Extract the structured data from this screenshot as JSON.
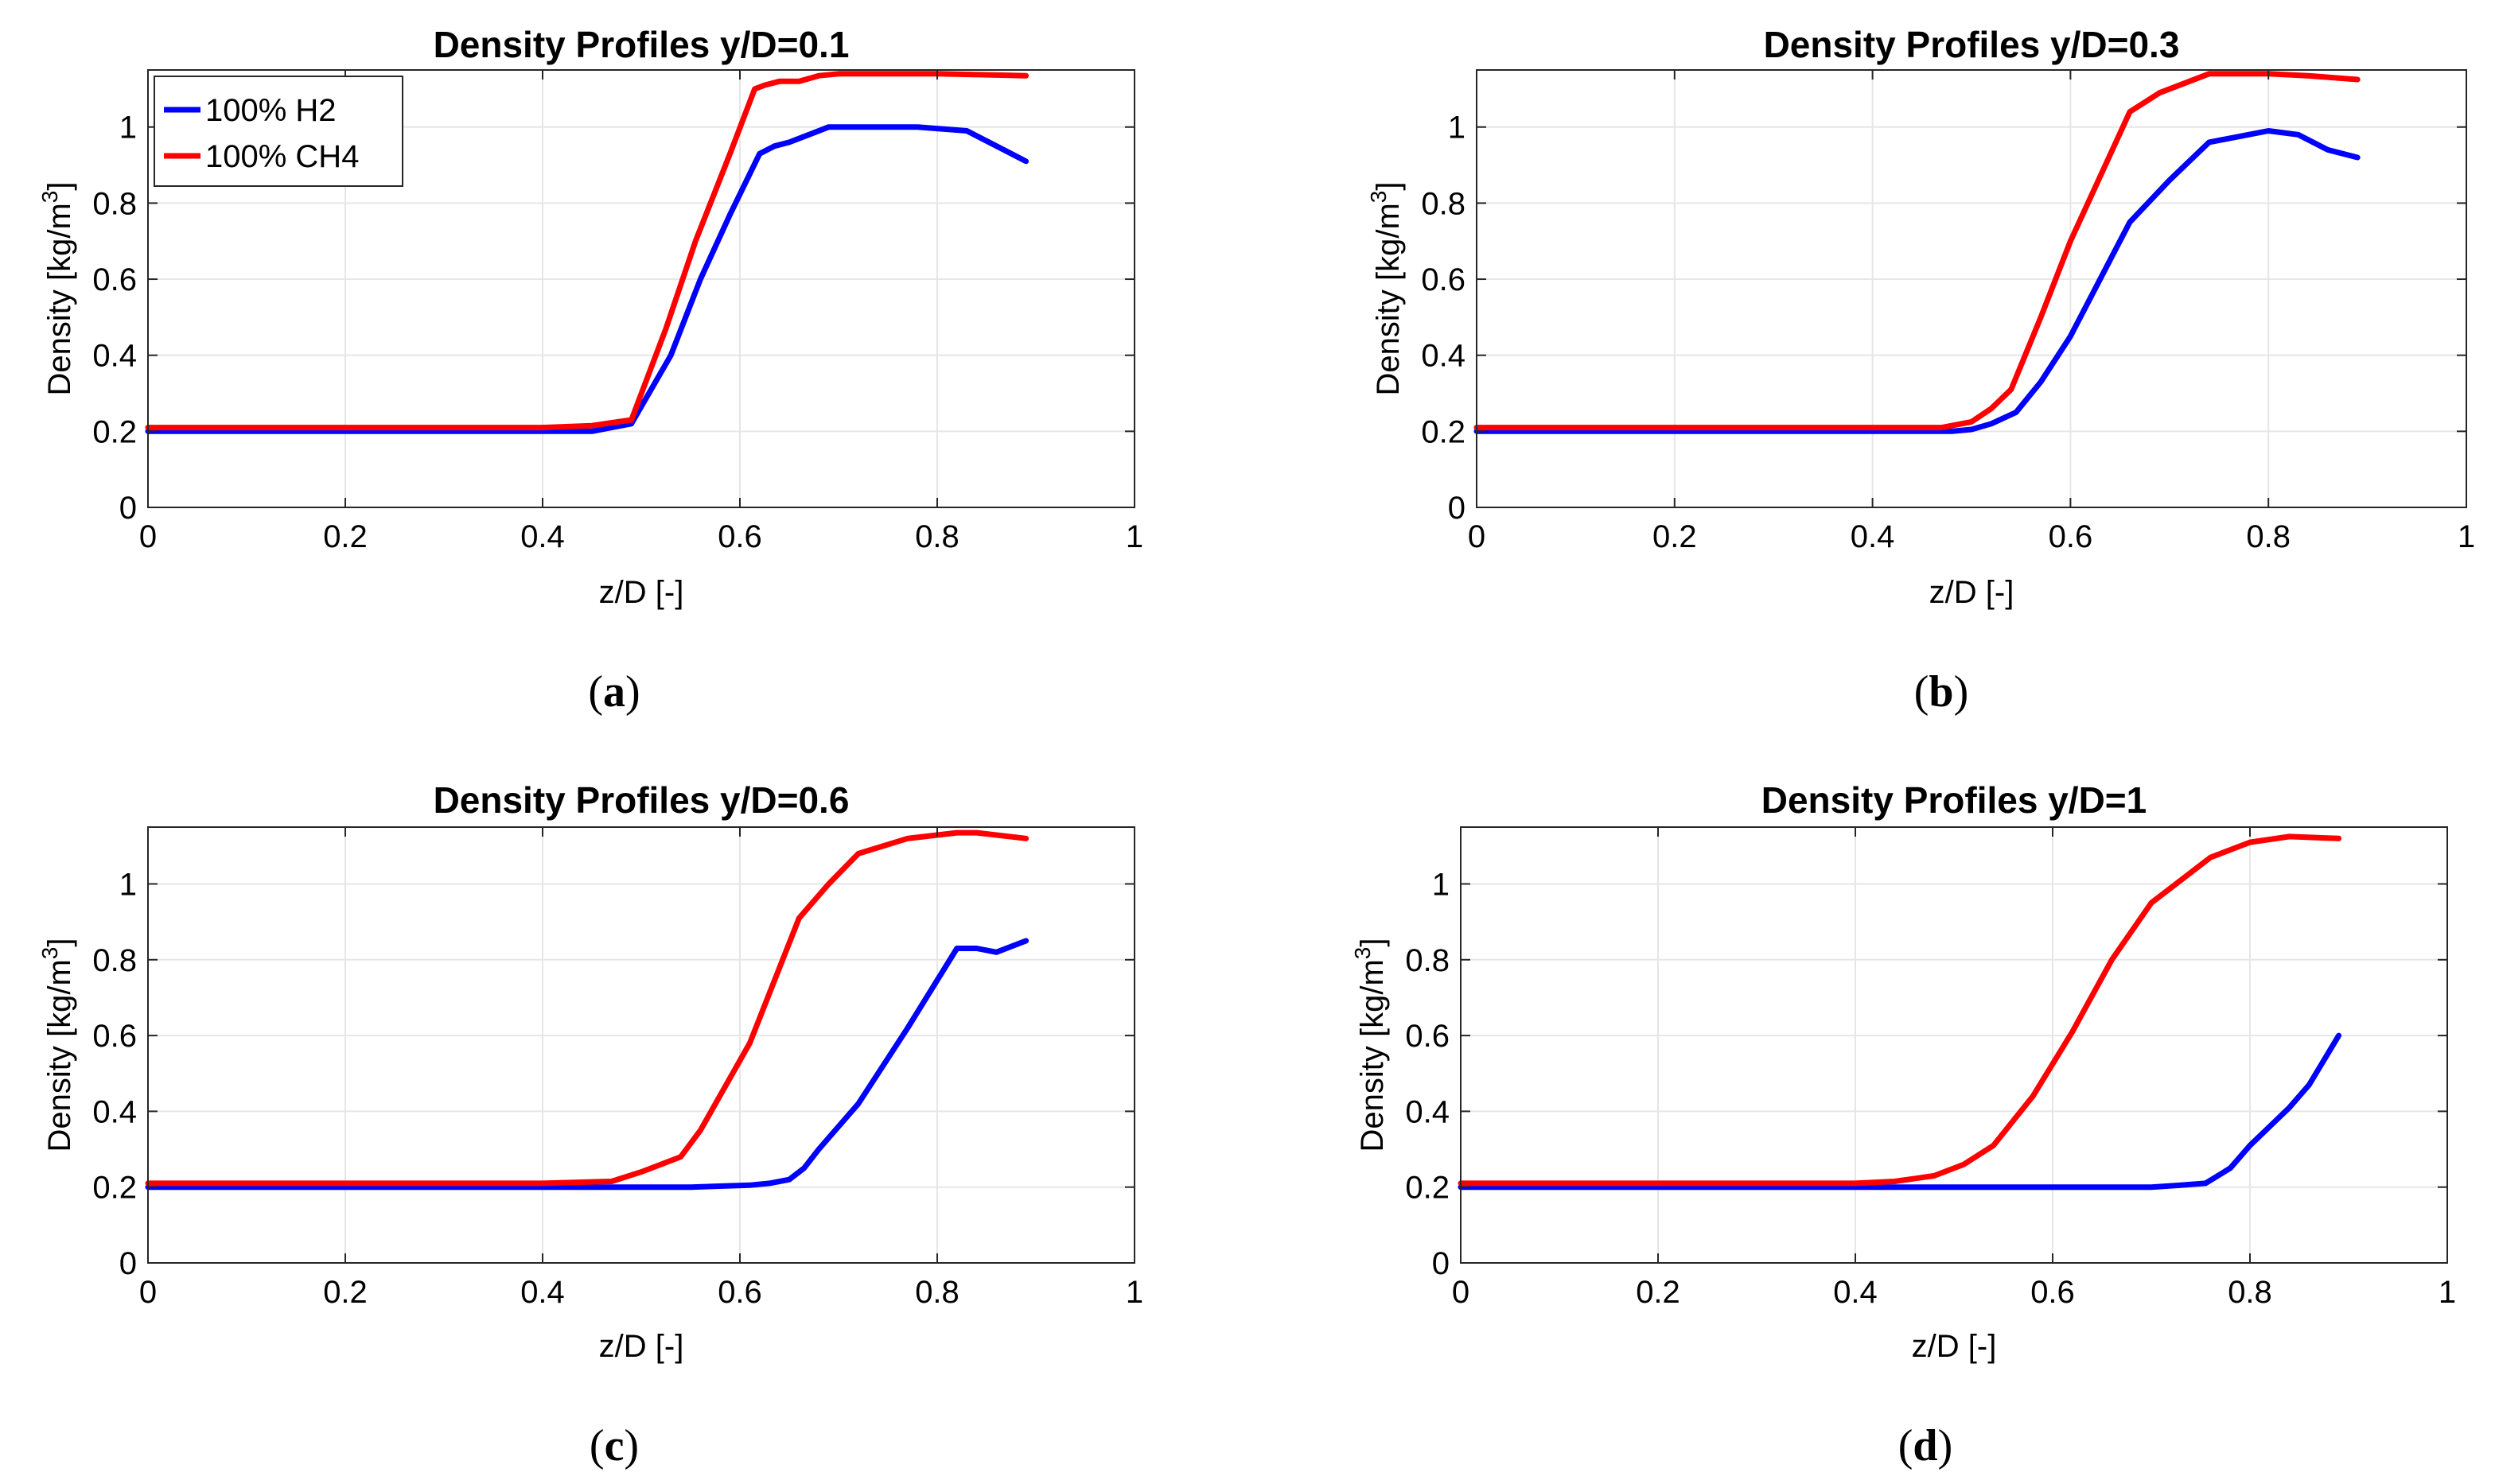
{
  "figure": {
    "legend": [
      {
        "name": "100% H2",
        "color": "#0000ff"
      },
      {
        "name": "100% CH4",
        "color": "#ff0000"
      }
    ],
    "colors": {
      "h2": "#0000ff",
      "ch4": "#ff0000",
      "grid": "#e6e6e6",
      "axis": "#262626"
    }
  },
  "chart_data": [
    {
      "type": "line",
      "caption": "a",
      "title": "Density Profiles y/D=0.1",
      "xlabel": "z/D [-]",
      "ylabel_main": "Density [kg/m",
      "ylabel_sup": "3",
      "ylabel_close": "]",
      "xlim": [
        0,
        1
      ],
      "ylim": [
        0,
        1.15
      ],
      "xticks": [
        "0",
        "0.2",
        "0.4",
        "0.6",
        "0.8",
        "1"
      ],
      "yticks": [
        "0",
        "0.2",
        "0.4",
        "0.6",
        "0.8",
        "1"
      ],
      "grid": true,
      "legend_position": "top-left",
      "series": [
        {
          "name": "100% H2",
          "x": [
            0,
            0.2,
            0.4,
            0.45,
            0.49,
            0.53,
            0.56,
            0.59,
            0.62,
            0.635,
            0.65,
            0.67,
            0.69,
            0.72,
            0.78,
            0.83,
            0.89
          ],
          "y": [
            0.2,
            0.2,
            0.2,
            0.2,
            0.22,
            0.4,
            0.6,
            0.77,
            0.93,
            0.95,
            0.96,
            0.98,
            1.0,
            1.0,
            1.0,
            0.99,
            0.91
          ]
        },
        {
          "name": "100% CH4",
          "x": [
            0,
            0.2,
            0.4,
            0.45,
            0.49,
            0.525,
            0.555,
            0.59,
            0.615,
            0.625,
            0.64,
            0.66,
            0.68,
            0.7,
            0.8,
            0.89
          ],
          "y": [
            0.21,
            0.21,
            0.21,
            0.215,
            0.23,
            0.47,
            0.7,
            0.93,
            1.1,
            1.11,
            1.12,
            1.12,
            1.135,
            1.14,
            1.14,
            1.135
          ]
        }
      ]
    },
    {
      "type": "line",
      "caption": "b",
      "title": "Density Profiles y/D=0.3",
      "xlabel": "z/D [-]",
      "ylabel_main": "Density [kg/m",
      "ylabel_sup": "3",
      "ylabel_close": "]",
      "xlim": [
        0,
        1
      ],
      "ylim": [
        0,
        1.15
      ],
      "xticks": [
        "0",
        "0.2",
        "0.4",
        "0.6",
        "0.8",
        "1"
      ],
      "yticks": [
        "0",
        "0.2",
        "0.4",
        "0.6",
        "0.8",
        "1"
      ],
      "grid": true,
      "legend_position": "none",
      "series": [
        {
          "name": "100% H2",
          "x": [
            0,
            0.2,
            0.4,
            0.48,
            0.5,
            0.52,
            0.545,
            0.57,
            0.6,
            0.63,
            0.66,
            0.7,
            0.74,
            0.78,
            0.8,
            0.83,
            0.86,
            0.89
          ],
          "y": [
            0.2,
            0.2,
            0.2,
            0.2,
            0.205,
            0.22,
            0.25,
            0.33,
            0.45,
            0.6,
            0.75,
            0.86,
            0.96,
            0.98,
            0.99,
            0.98,
            0.94,
            0.92
          ]
        },
        {
          "name": "100% CH4",
          "x": [
            0,
            0.2,
            0.4,
            0.47,
            0.5,
            0.52,
            0.54,
            0.57,
            0.6,
            0.63,
            0.66,
            0.69,
            0.74,
            0.8,
            0.84,
            0.89
          ],
          "y": [
            0.21,
            0.21,
            0.21,
            0.21,
            0.225,
            0.26,
            0.31,
            0.5,
            0.7,
            0.87,
            1.04,
            1.09,
            1.14,
            1.14,
            1.135,
            1.125
          ]
        }
      ]
    },
    {
      "type": "line",
      "caption": "c",
      "title": "Density Profiles y/D=0.6",
      "xlabel": "z/D [-]",
      "ylabel_main": "Density [kg/m",
      "ylabel_sup": "3",
      "ylabel_close": "]",
      "xlim": [
        0,
        1
      ],
      "ylim": [
        0,
        1.15
      ],
      "xticks": [
        "0",
        "0.2",
        "0.4",
        "0.6",
        "0.8",
        "1"
      ],
      "yticks": [
        "0",
        "0.2",
        "0.4",
        "0.6",
        "0.8",
        "1"
      ],
      "grid": true,
      "legend_position": "none",
      "series": [
        {
          "name": "100% H2",
          "x": [
            0,
            0.2,
            0.4,
            0.55,
            0.61,
            0.63,
            0.65,
            0.665,
            0.68,
            0.72,
            0.77,
            0.82,
            0.84,
            0.86,
            0.89
          ],
          "y": [
            0.2,
            0.2,
            0.2,
            0.2,
            0.205,
            0.21,
            0.22,
            0.25,
            0.3,
            0.42,
            0.62,
            0.83,
            0.83,
            0.82,
            0.85
          ]
        },
        {
          "name": "100% CH4",
          "x": [
            0,
            0.2,
            0.4,
            0.47,
            0.5,
            0.54,
            0.56,
            0.61,
            0.66,
            0.69,
            0.72,
            0.77,
            0.82,
            0.84,
            0.89
          ],
          "y": [
            0.21,
            0.21,
            0.21,
            0.215,
            0.24,
            0.28,
            0.35,
            0.58,
            0.91,
            1.0,
            1.08,
            1.12,
            1.135,
            1.135,
            1.12
          ]
        }
      ]
    },
    {
      "type": "line",
      "caption": "d",
      "title": "Density Profiles y/D=1",
      "xlabel": "z/D [-]",
      "ylabel_main": "Density [kg/m",
      "ylabel_sup": "3",
      "ylabel_close": "]",
      "xlim": [
        0,
        1
      ],
      "ylim": [
        0,
        1.15
      ],
      "xticks": [
        "0",
        "0.2",
        "0.4",
        "0.6",
        "0.8",
        "1"
      ],
      "yticks": [
        "0",
        "0.2",
        "0.4",
        "0.6",
        "0.8",
        "1"
      ],
      "grid": true,
      "legend_position": "none",
      "series": [
        {
          "name": "100% H2",
          "x": [
            0,
            0.2,
            0.4,
            0.6,
            0.7,
            0.73,
            0.755,
            0.78,
            0.8,
            0.82,
            0.84,
            0.86,
            0.89
          ],
          "y": [
            0.2,
            0.2,
            0.2,
            0.2,
            0.2,
            0.205,
            0.21,
            0.25,
            0.31,
            0.36,
            0.41,
            0.47,
            0.6
          ]
        },
        {
          "name": "100% CH4",
          "x": [
            0,
            0.2,
            0.4,
            0.44,
            0.48,
            0.51,
            0.54,
            0.58,
            0.62,
            0.66,
            0.7,
            0.76,
            0.8,
            0.84,
            0.89
          ],
          "y": [
            0.21,
            0.21,
            0.21,
            0.215,
            0.23,
            0.26,
            0.31,
            0.44,
            0.61,
            0.8,
            0.95,
            1.07,
            1.11,
            1.125,
            1.12
          ]
        }
      ]
    }
  ]
}
